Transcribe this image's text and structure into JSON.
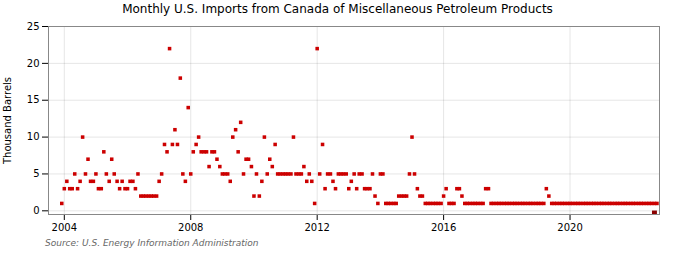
{
  "chart_data": {
    "type": "scatter",
    "title": "Monthly U.S. Imports from Canada of Miscellaneous Petroleum Products",
    "ylabel": "Thousand Barrels",
    "source": "Source: U.S. Energy Information Administration",
    "xlim": [
      2003.5,
      2022.83
    ],
    "ylim": [
      -0.5,
      25
    ],
    "xticks": [
      2004,
      2008,
      2012,
      2016,
      2020
    ],
    "yticks": [
      0,
      5,
      10,
      15,
      20,
      25
    ],
    "grid": true,
    "marker": "square",
    "series": [
      {
        "color": "#cc0000",
        "x": [
          2003.92,
          2004.0,
          2004.08,
          2004.17,
          2004.25,
          2004.33,
          2004.42,
          2004.5,
          2004.58,
          2004.67,
          2004.75,
          2004.83,
          2004.92,
          2005.0,
          2005.08,
          2005.17,
          2005.25,
          2005.33,
          2005.42,
          2005.5,
          2005.58,
          2005.67,
          2005.75,
          2005.83,
          2005.92,
          2006.0,
          2006.08,
          2006.17,
          2006.25,
          2006.33,
          2006.42,
          2006.5,
          2006.58,
          2006.67,
          2006.75,
          2006.83,
          2006.92,
          2007.0,
          2007.08,
          2007.17,
          2007.25,
          2007.33,
          2007.42,
          2007.5,
          2007.58,
          2007.67,
          2007.75,
          2007.83,
          2007.92,
          2008.0,
          2008.08,
          2008.17,
          2008.25,
          2008.33,
          2008.42,
          2008.5,
          2008.58,
          2008.67,
          2008.75,
          2008.83,
          2008.92,
          2009.0,
          2009.08,
          2009.17,
          2009.25,
          2009.33,
          2009.42,
          2009.5,
          2009.58,
          2009.67,
          2009.75,
          2009.83,
          2009.92,
          2010.0,
          2010.08,
          2010.17,
          2010.25,
          2010.33,
          2010.42,
          2010.5,
          2010.58,
          2010.67,
          2010.75,
          2010.83,
          2010.92,
          2011.0,
          2011.08,
          2011.17,
          2011.25,
          2011.33,
          2011.42,
          2011.5,
          2011.58,
          2011.67,
          2011.75,
          2011.83,
          2011.92,
          2012.0,
          2012.08,
          2012.17,
          2012.25,
          2012.33,
          2012.42,
          2012.5,
          2012.58,
          2012.67,
          2012.75,
          2012.83,
          2012.92,
          2013.0,
          2013.08,
          2013.17,
          2013.25,
          2013.33,
          2013.42,
          2013.5,
          2013.58,
          2013.67,
          2013.75,
          2013.83,
          2013.92,
          2014.0,
          2014.08,
          2014.17,
          2014.25,
          2014.33,
          2014.42,
          2014.5,
          2014.58,
          2014.67,
          2014.75,
          2014.83,
          2014.92,
          2015.0,
          2015.08,
          2015.17,
          2015.25,
          2015.33,
          2015.42,
          2015.5,
          2015.58,
          2015.67,
          2015.75,
          2015.83,
          2015.92,
          2016.0,
          2016.08,
          2016.17,
          2016.25,
          2016.33,
          2016.42,
          2016.5,
          2016.58,
          2016.67,
          2016.75,
          2016.83,
          2016.92,
          2017.0,
          2017.08,
          2017.17,
          2017.25,
          2017.33,
          2017.42,
          2017.5,
          2017.58,
          2017.67,
          2017.75,
          2017.83,
          2017.92,
          2018.0,
          2018.08,
          2018.17,
          2018.25,
          2018.33,
          2018.42,
          2018.5,
          2018.58,
          2018.67,
          2018.75,
          2018.83,
          2018.92,
          2019.0,
          2019.08,
          2019.17,
          2019.25,
          2019.33,
          2019.42,
          2019.5,
          2019.58,
          2019.67,
          2019.75,
          2019.83,
          2019.92,
          2020.0,
          2020.08,
          2020.17,
          2020.25,
          2020.33,
          2020.42,
          2020.5,
          2020.58,
          2020.67,
          2020.75,
          2020.83,
          2020.92,
          2021.0,
          2021.08,
          2021.17,
          2021.25,
          2021.33,
          2021.42,
          2021.5,
          2021.58,
          2021.67,
          2021.75,
          2021.83,
          2021.92,
          2022.0,
          2022.08,
          2022.17,
          2022.25,
          2022.33,
          2022.42,
          2022.5,
          2022.58,
          2022.67,
          2022.75
        ],
        "values": [
          1,
          3,
          4,
          3,
          3,
          5,
          3,
          4,
          10,
          5,
          7,
          4,
          4,
          5,
          3,
          3,
          8,
          5,
          4,
          7,
          5,
          4,
          3,
          4,
          3,
          3,
          4,
          4,
          3,
          5,
          2,
          2,
          2,
          2,
          2,
          2,
          2,
          4,
          5,
          9,
          8,
          22,
          9,
          11,
          9,
          18,
          5,
          4,
          14,
          5,
          8,
          9,
          10,
          8,
          8,
          8,
          6,
          8,
          8,
          7,
          6,
          5,
          5,
          5,
          4,
          10,
          11,
          8,
          12,
          5,
          7,
          7,
          6,
          2,
          5,
          2,
          4,
          10,
          5,
          7,
          6,
          9,
          5,
          5,
          5,
          5,
          5,
          5,
          10,
          5,
          5,
          5,
          6,
          4,
          5,
          4,
          1,
          22,
          5,
          9,
          3,
          5,
          5,
          4,
          3,
          5,
          5,
          5,
          5,
          3,
          4,
          5,
          3,
          5,
          5,
          3,
          3,
          3,
          5,
          2,
          1,
          5,
          5,
          1,
          1,
          1,
          1,
          1,
          2,
          2,
          2,
          2,
          5,
          10,
          5,
          3,
          2,
          2,
          1,
          1,
          1,
          1,
          1,
          1,
          1,
          2,
          3,
          1,
          1,
          1,
          3,
          3,
          2,
          1,
          1,
          1,
          1,
          1,
          1,
          1,
          1,
          3,
          3,
          1,
          1,
          1,
          1,
          1,
          1,
          1,
          1,
          1,
          1,
          1,
          1,
          1,
          1,
          1,
          1,
          1,
          1,
          1,
          1,
          1,
          3,
          2,
          1,
          1,
          1,
          1,
          1,
          1,
          1,
          1,
          1,
          1,
          1,
          1,
          1,
          1,
          1,
          1,
          1,
          1,
          1,
          1,
          1,
          1,
          1,
          1,
          1,
          1,
          1,
          1,
          1,
          1,
          1,
          1,
          1,
          1,
          1,
          1,
          1,
          1,
          1,
          1,
          1
        ]
      },
      {
        "color": "#8b0000",
        "x": [
          2022.67
        ],
        "values": [
          -0.3
        ]
      }
    ]
  }
}
